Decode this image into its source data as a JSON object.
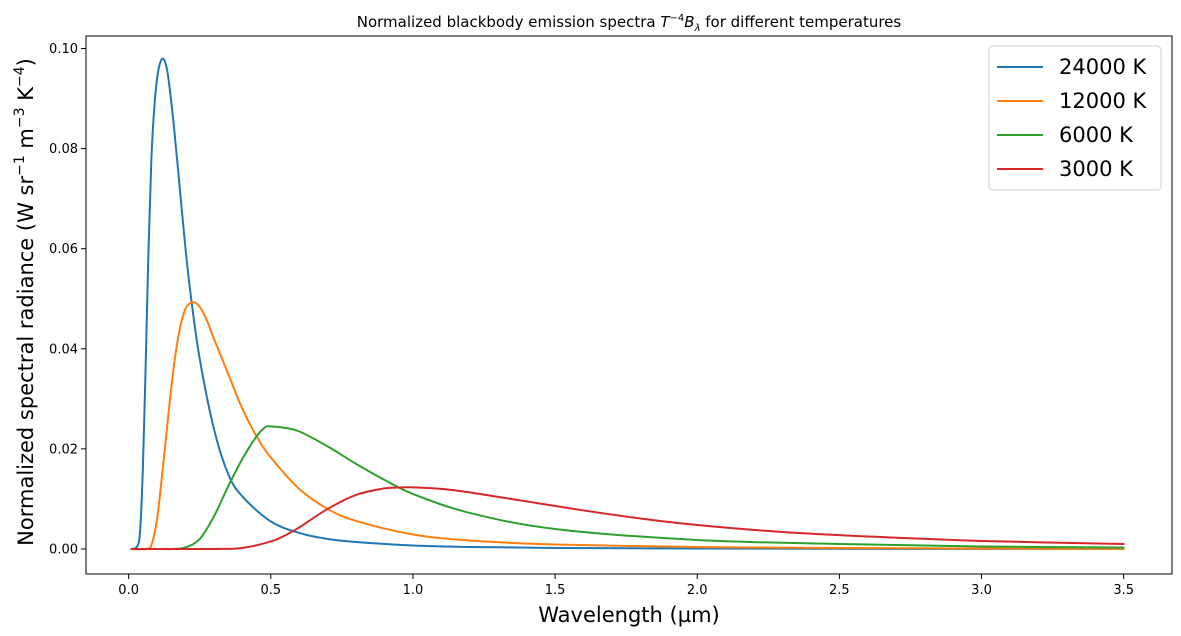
{
  "chart_data": {
    "type": "line",
    "title_parts": {
      "pre": "Normalized blackbody emission spectra ",
      "T": "T",
      "exp": "−4",
      "B": "B",
      "sub": "λ",
      "post": " for different temperatures"
    },
    "xlabel": "Wavelength (µm)",
    "ylabel_parts": {
      "main": "Normalized spectral radiance (W sr",
      "e1": "−1",
      "mid1": " m",
      "e2": "−3",
      "mid2": " K",
      "e3": "−4",
      "end": ")"
    },
    "xlim": [
      -0.15,
      3.67
    ],
    "ylim": [
      -0.005,
      0.1025
    ],
    "xticks": [
      0.0,
      0.5,
      1.0,
      1.5,
      2.0,
      2.5,
      3.0,
      3.5
    ],
    "xtick_labels": [
      "0.0",
      "0.5",
      "1.0",
      "1.5",
      "2.0",
      "2.5",
      "3.0",
      "3.5"
    ],
    "yticks": [
      0.0,
      0.02,
      0.04,
      0.06,
      0.08,
      0.1
    ],
    "ytick_labels": [
      "0.00",
      "0.02",
      "0.04",
      "0.06",
      "0.08",
      "0.10"
    ],
    "grid": false,
    "legend_position": "upper right",
    "series": [
      {
        "name": "24000 K",
        "color": "#1f77b4",
        "x": [
          0.01,
          0.03,
          0.04,
          0.05,
          0.06,
          0.07,
          0.08,
          0.09,
          0.1,
          0.11,
          0.12,
          0.13,
          0.14,
          0.16,
          0.18,
          0.2,
          0.22,
          0.25,
          0.3,
          0.35,
          0.4,
          0.5,
          0.6,
          0.7,
          0.8,
          1.0,
          1.2,
          1.5,
          2.0,
          2.5,
          3.0,
          3.5
        ],
        "y": [
          0.0,
          0.0005,
          0.0035,
          0.016,
          0.037,
          0.06,
          0.078,
          0.088,
          0.094,
          0.097,
          0.098,
          0.097,
          0.094,
          0.084,
          0.072,
          0.06,
          0.05,
          0.038,
          0.024,
          0.015,
          0.0105,
          0.0055,
          0.0032,
          0.002,
          0.0014,
          0.0007,
          0.0004,
          0.0002,
          0.0001,
          4e-05,
          2e-05,
          1e-05
        ]
      },
      {
        "name": "12000 K",
        "color": "#ff7f0e",
        "x": [
          0.01,
          0.06,
          0.08,
          0.1,
          0.12,
          0.14,
          0.16,
          0.18,
          0.2,
          0.22,
          0.24,
          0.26,
          0.28,
          0.3,
          0.35,
          0.4,
          0.45,
          0.5,
          0.6,
          0.7,
          0.8,
          1.0,
          1.2,
          1.5,
          2.0,
          2.5,
          3.0,
          3.5
        ],
        "y": [
          0.0,
          0.0,
          0.0008,
          0.006,
          0.016,
          0.027,
          0.037,
          0.044,
          0.048,
          0.0492,
          0.049,
          0.0475,
          0.045,
          0.042,
          0.035,
          0.028,
          0.0225,
          0.0183,
          0.012,
          0.008,
          0.0056,
          0.0029,
          0.0017,
          0.0009,
          0.0004,
          0.0002,
          0.0001,
          5e-05
        ]
      },
      {
        "name": "6000 K",
        "color": "#2ca02c",
        "x": [
          0.01,
          0.1,
          0.15,
          0.2,
          0.25,
          0.3,
          0.35,
          0.4,
          0.45,
          0.48,
          0.5,
          0.55,
          0.6,
          0.7,
          0.8,
          0.9,
          1.0,
          1.2,
          1.5,
          2.0,
          2.5,
          3.0,
          3.5
        ],
        "y": [
          0.0,
          0.0,
          0.0,
          0.0003,
          0.002,
          0.0065,
          0.0125,
          0.018,
          0.0225,
          0.0243,
          0.0245,
          0.0242,
          0.0235,
          0.0205,
          0.017,
          0.0138,
          0.011,
          0.0072,
          0.004,
          0.0018,
          0.001,
          0.0005,
          0.0003
        ]
      },
      {
        "name": "3000 K",
        "color": "#d62728",
        "x": [
          0.01,
          0.2,
          0.3,
          0.4,
          0.5,
          0.55,
          0.6,
          0.7,
          0.8,
          0.9,
          0.97,
          1.0,
          1.1,
          1.2,
          1.4,
          1.6,
          1.8,
          2.0,
          2.3,
          2.6,
          3.0,
          3.5
        ],
        "y": [
          0.0,
          0.0,
          0.0,
          0.0002,
          0.0015,
          0.0027,
          0.0043,
          0.008,
          0.0108,
          0.0121,
          0.0123,
          0.0123,
          0.012,
          0.0113,
          0.0095,
          0.0077,
          0.0061,
          0.0048,
          0.0034,
          0.0025,
          0.0016,
          0.001
        ]
      }
    ]
  }
}
